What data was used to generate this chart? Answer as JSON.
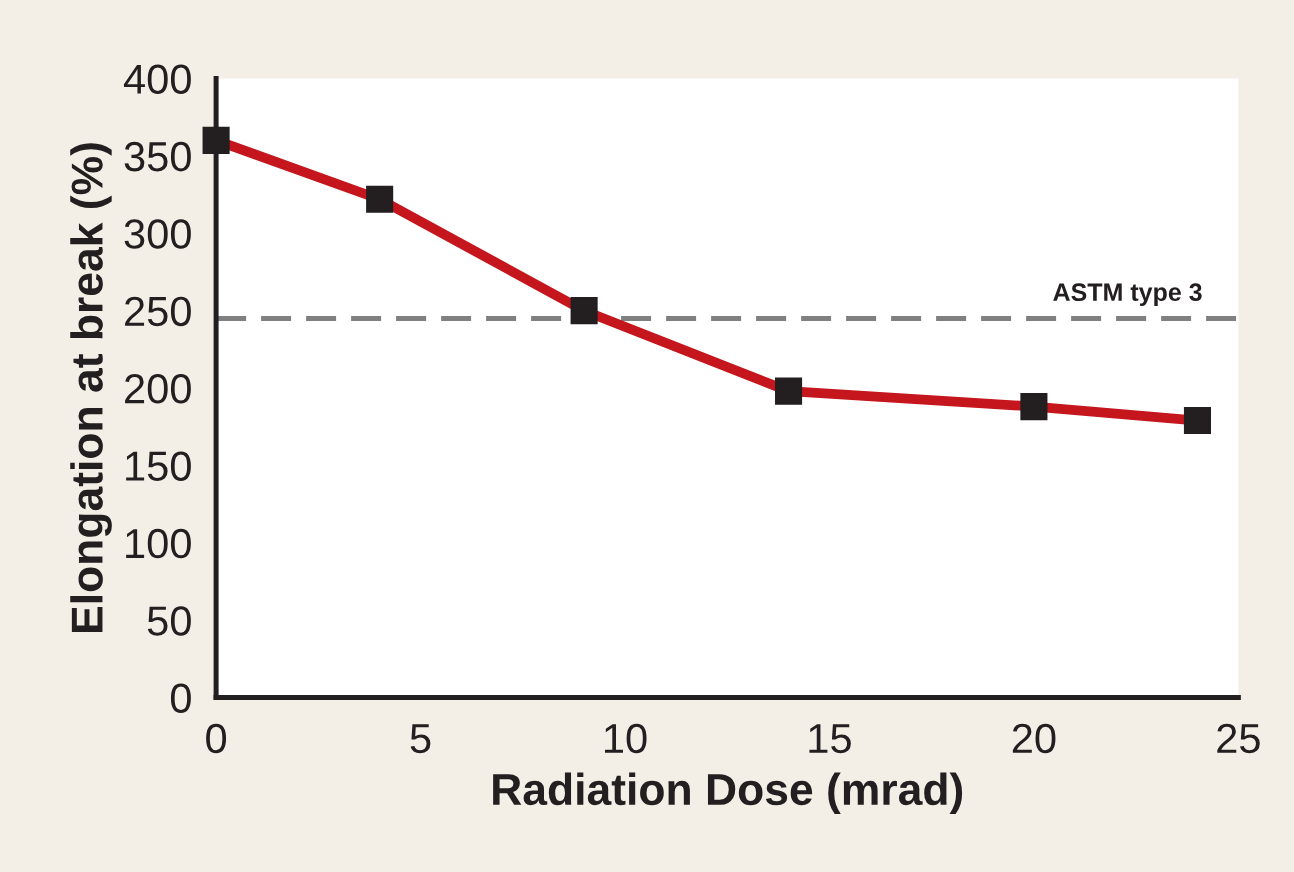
{
  "chart_data": {
    "type": "line",
    "xlabel": "Radiation Dose (mrad)",
    "ylabel": "Elongation at break (%)",
    "x": [
      0,
      4,
      9,
      14,
      20,
      24
    ],
    "series": [
      {
        "color": "#c4161c",
        "values": [
          360,
          322,
          250,
          198,
          188,
          179
        ]
      }
    ],
    "marker": "square",
    "line_style": "solid",
    "xlim": [
      0,
      25
    ],
    "xticks": [
      0,
      5,
      10,
      15,
      20,
      25
    ],
    "ylim": [
      0,
      400
    ],
    "yticks": [
      0,
      50,
      100,
      150,
      200,
      250,
      300,
      350,
      400
    ],
    "ref_lines": [
      {
        "axis": "y",
        "value": 245,
        "label": "ASTM type 3",
        "color": "#808080",
        "line_style": "dashed"
      }
    ],
    "grid": false,
    "legend": false
  }
}
